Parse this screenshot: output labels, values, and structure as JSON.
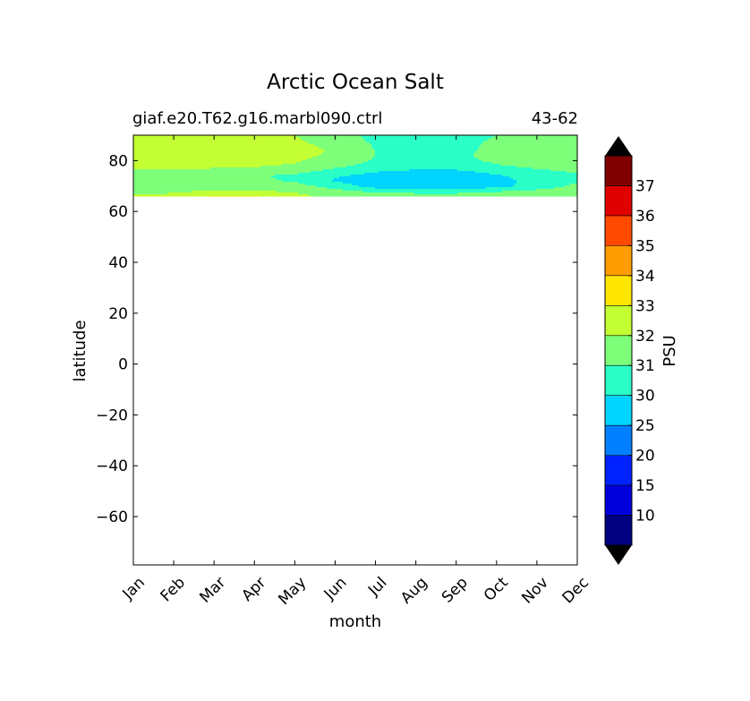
{
  "chart_data": {
    "type": "filled-contour",
    "title": "Arctic Ocean Salt",
    "subtitle_left": "giaf.e20.T62.g16.marbl090.ctrl",
    "subtitle_right": "43-62",
    "xlabel": "month",
    "ylabel": "latitude",
    "x_categories": [
      "Jan",
      "Feb",
      "Mar",
      "Apr",
      "May",
      "Jun",
      "Jul",
      "Aug",
      "Sep",
      "Oct",
      "Nov",
      "Dec"
    ],
    "xlim": [
      0,
      11
    ],
    "ylim": [
      -79,
      90
    ],
    "yticks": [
      80,
      60,
      40,
      20,
      0,
      -20,
      -40,
      -60
    ],
    "ytick_labels": [
      "80",
      "60",
      "40",
      "20",
      "0",
      "−20",
      "−40",
      "−60"
    ],
    "data_lat_range": [
      66,
      90
    ],
    "colorbar": {
      "label": "PSU",
      "extend": "both",
      "levels": [
        "10",
        "15",
        "20",
        "25",
        "30",
        "31",
        "32",
        "33",
        "34",
        "35",
        "36",
        "37"
      ],
      "colors": [
        "#000080",
        "#0000dd",
        "#0022ff",
        "#0080ff",
        "#00d4ff",
        "#2affc8",
        "#7dff7a",
        "#c3ff33",
        "#ffe600",
        "#ff9d00",
        "#ff4a00",
        "#e00000",
        "#800000"
      ],
      "under_color": "#000000",
      "over_color": "#000000"
    },
    "fields": {
      "lat": [
        66,
        68,
        70,
        72,
        74,
        76,
        78,
        80,
        82,
        84,
        86,
        88,
        90
      ],
      "values": [
        [
          32.2,
          32.3,
          33.1,
          33.1,
          32.4,
          31.5,
          31.4,
          31.5,
          31.5,
          31.6,
          31.6,
          32.0
        ],
        [
          31.6,
          31.8,
          32.1,
          32.1,
          31.8,
          31.3,
          30.8,
          30.6,
          30.6,
          30.9,
          31.2,
          31.5
        ],
        [
          31.3,
          31.5,
          31.6,
          31.6,
          31.4,
          30.6,
          29.5,
          29.2,
          29.2,
          29.6,
          30.5,
          31.2
        ],
        [
          31.2,
          31.3,
          31.3,
          31.2,
          30.9,
          29.9,
          29.4,
          29.3,
          29.3,
          29.6,
          30.4,
          30.9
        ],
        [
          31.4,
          31.4,
          31.3,
          31.1,
          30.8,
          30.1,
          29.7,
          29.5,
          29.5,
          29.9,
          30.4,
          30.8
        ],
        [
          31.9,
          31.9,
          31.8,
          31.7,
          31.4,
          30.7,
          30.1,
          29.9,
          29.9,
          30.3,
          30.8,
          31.2
        ],
        [
          32.2,
          32.2,
          32.2,
          32.1,
          31.9,
          31.3,
          30.6,
          30.4,
          30.5,
          30.9,
          31.3,
          31.6
        ],
        [
          32.3,
          32.3,
          32.3,
          32.3,
          32.1,
          31.6,
          30.9,
          30.6,
          30.7,
          31.2,
          31.5,
          31.8
        ],
        [
          32.4,
          32.4,
          32.4,
          32.4,
          32.3,
          31.8,
          31.0,
          30.7,
          30.8,
          31.3,
          31.6,
          31.8
        ],
        [
          32.4,
          32.4,
          32.4,
          32.4,
          32.3,
          31.9,
          31.0,
          30.7,
          30.8,
          31.2,
          31.6,
          31.8
        ],
        [
          32.3,
          32.3,
          32.3,
          32.3,
          32.2,
          31.8,
          30.9,
          30.6,
          30.7,
          31.2,
          31.5,
          31.7
        ],
        [
          32.2,
          32.2,
          32.2,
          32.2,
          32.1,
          31.6,
          30.8,
          30.6,
          30.7,
          31.1,
          31.4,
          31.6
        ],
        [
          32.1,
          32.1,
          32.1,
          32.1,
          32.0,
          31.5,
          30.7,
          30.5,
          30.6,
          31.0,
          31.3,
          31.5
        ]
      ]
    }
  }
}
